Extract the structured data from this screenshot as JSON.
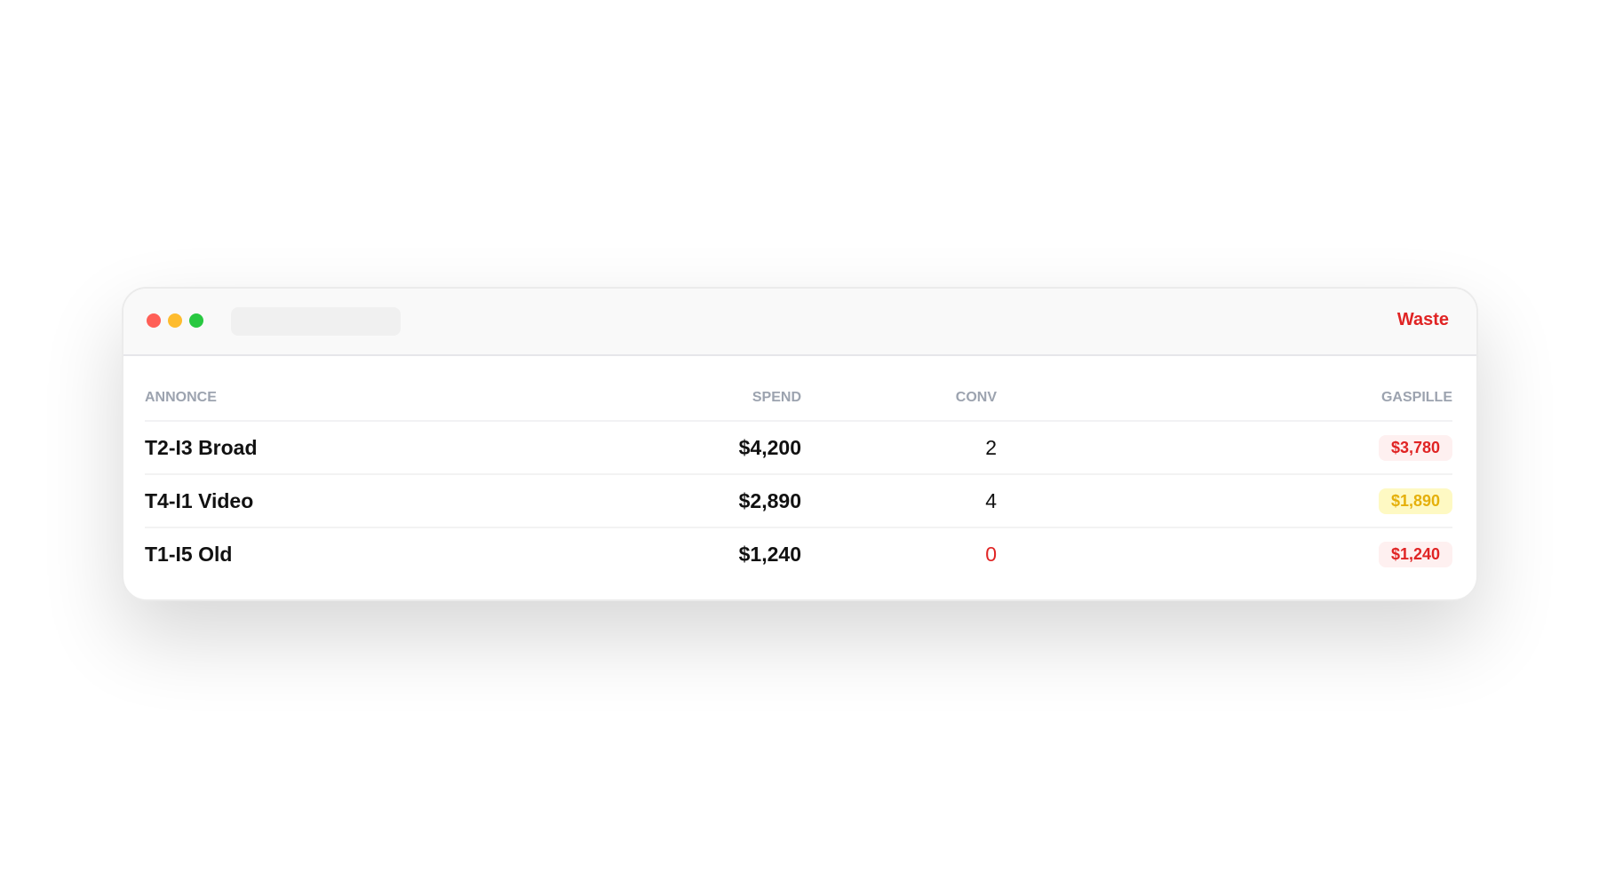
{
  "window": {
    "title": "Waste",
    "colors": {
      "accent": "#e02424",
      "close": "#ff5f57",
      "minimize": "#febc2e",
      "maximize": "#28c840"
    }
  },
  "table": {
    "headers": [
      "ANNONCE",
      "SPEND",
      "CONV",
      "GASPILLE"
    ],
    "rows": [
      {
        "ad": "T2-I3 Broad",
        "spend": "$4,200",
        "conv": "2",
        "waste": "$3,780",
        "waste_level": "red"
      },
      {
        "ad": "T4-I1 Video",
        "spend": "$2,890",
        "conv": "4",
        "waste": "$1,890",
        "waste_level": "yellow"
      },
      {
        "ad": "T1-I5 Old",
        "spend": "$1,240",
        "conv": "0",
        "waste": "$1,240",
        "waste_level": "red"
      }
    ]
  }
}
